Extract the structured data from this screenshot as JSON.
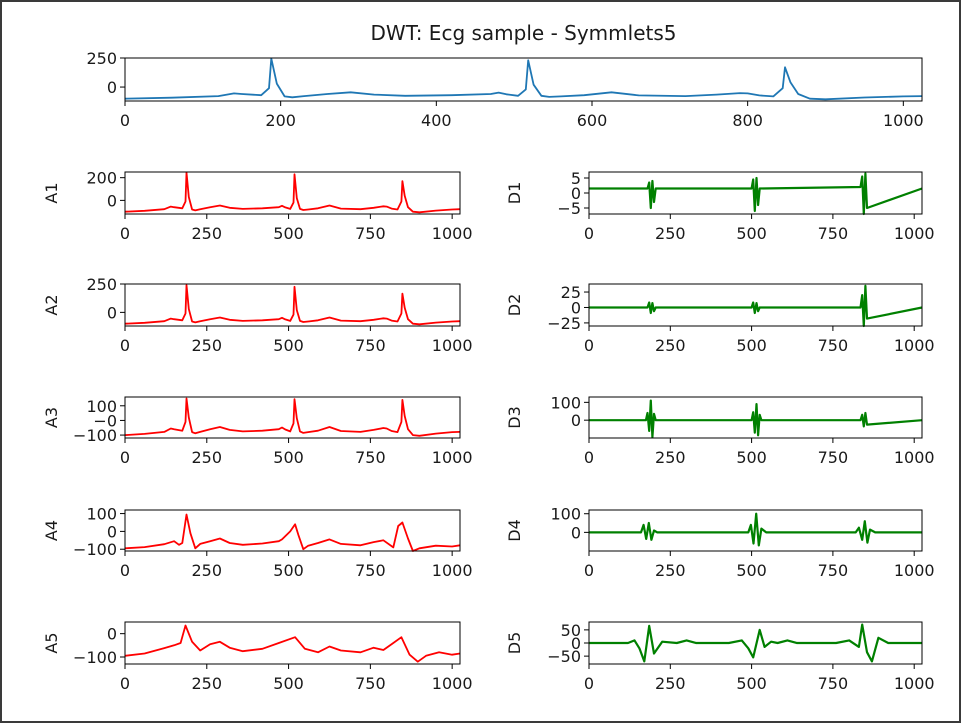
{
  "figure_title": "DWT: Ecg sample - Symmlets5",
  "colors": {
    "signal": "#1f77b4",
    "approx": "#ff0000",
    "detail": "#008000"
  },
  "chart_data": [
    {
      "id": "signal",
      "type": "line",
      "ylabel": "",
      "xlim": [
        0,
        1024
      ],
      "ylim": [
        -120,
        250
      ],
      "xticks": [
        "0",
        "200",
        "400",
        "600",
        "800",
        "1000"
      ],
      "yticks": [
        "250",
        "0"
      ],
      "series": [
        {
          "x": [
            0,
            60,
            120,
            140,
            150,
            175,
            185,
            188,
            195,
            205,
            215,
            230,
            260,
            290,
            320,
            360,
            420,
            470,
            480,
            490,
            505,
            515,
            518,
            525,
            535,
            545,
            560,
            590,
            625,
            660,
            720,
            760,
            790,
            800,
            815,
            833,
            845,
            848,
            855,
            865,
            880,
            900,
            950,
            1000,
            1024
          ],
          "y": [
            -100,
            -92,
            -78,
            -55,
            -60,
            -70,
            -10,
            245,
            30,
            -80,
            -88,
            -78,
            -60,
            -45,
            -65,
            -75,
            -70,
            -60,
            -48,
            -62,
            -75,
            -20,
            230,
            20,
            -75,
            -85,
            -80,
            -70,
            -45,
            -72,
            -78,
            -65,
            -52,
            -55,
            -72,
            -80,
            -10,
            170,
            40,
            -60,
            -100,
            -105,
            -90,
            -80,
            -78
          ]
        }
      ]
    },
    {
      "id": "A1",
      "type": "line",
      "ylabel": "A1",
      "xlim": [
        0,
        1024
      ],
      "ylim": [
        -120,
        250
      ],
      "xticks": [
        "0",
        "250",
        "500",
        "750",
        "1000"
      ],
      "yticks": [
        "200",
        "0"
      ],
      "series": [
        {
          "x": [
            0,
            60,
            120,
            140,
            150,
            175,
            185,
            188,
            195,
            205,
            215,
            230,
            260,
            290,
            320,
            360,
            420,
            470,
            480,
            490,
            505,
            515,
            518,
            525,
            535,
            545,
            560,
            590,
            625,
            660,
            720,
            760,
            790,
            800,
            815,
            833,
            845,
            848,
            855,
            865,
            880,
            900,
            950,
            1000,
            1024
          ],
          "y": [
            -100,
            -92,
            -78,
            -55,
            -60,
            -70,
            -10,
            245,
            30,
            -80,
            -88,
            -78,
            -60,
            -45,
            -65,
            -75,
            -70,
            -60,
            -48,
            -62,
            -75,
            -20,
            230,
            20,
            -75,
            -85,
            -80,
            -70,
            -45,
            -72,
            -78,
            -65,
            -52,
            -55,
            -72,
            -80,
            -10,
            170,
            40,
            -60,
            -100,
            -105,
            -90,
            -80,
            -78
          ]
        }
      ]
    },
    {
      "id": "D1",
      "type": "line",
      "ylabel": "D1",
      "xlim": [
        0,
        1024
      ],
      "ylim": [
        -7,
        7
      ],
      "xticks": [
        "0",
        "250",
        "500",
        "750",
        "1000"
      ],
      "yticks": [
        "5",
        "0",
        "−5"
      ],
      "series": [
        {
          "x": [
            0,
            180,
            185,
            190,
            195,
            200,
            205,
            500,
            505,
            510,
            515,
            520,
            525,
            835,
            840,
            845,
            850,
            855,
            1024
          ],
          "y": [
            1.5,
            1.5,
            3.5,
            -5,
            4,
            -3,
            1.5,
            1.5,
            4.5,
            -6,
            5,
            -4,
            1.5,
            2,
            5.5,
            -7,
            6.5,
            -5,
            1.5
          ]
        }
      ]
    },
    {
      "id": "A2",
      "type": "line",
      "ylabel": "A2",
      "xlim": [
        0,
        1024
      ],
      "ylim": [
        -120,
        250
      ],
      "xticks": [
        "0",
        "250",
        "500",
        "750",
        "1000"
      ],
      "yticks": [
        "250",
        "0"
      ],
      "series": [
        {
          "x": [
            0,
            60,
            120,
            140,
            150,
            175,
            185,
            188,
            195,
            205,
            215,
            230,
            260,
            290,
            320,
            360,
            420,
            470,
            480,
            490,
            505,
            515,
            518,
            525,
            535,
            545,
            560,
            590,
            625,
            660,
            720,
            760,
            790,
            800,
            815,
            833,
            845,
            848,
            855,
            865,
            880,
            900,
            950,
            1000,
            1024
          ],
          "y": [
            -100,
            -92,
            -78,
            -55,
            -60,
            -70,
            -10,
            240,
            30,
            -80,
            -88,
            -78,
            -60,
            -45,
            -65,
            -75,
            -70,
            -60,
            -48,
            -62,
            -75,
            -20,
            225,
            20,
            -75,
            -85,
            -80,
            -70,
            -45,
            -72,
            -78,
            -65,
            -52,
            -55,
            -72,
            -80,
            -10,
            165,
            40,
            -60,
            -100,
            -105,
            -90,
            -80,
            -78
          ]
        }
      ]
    },
    {
      "id": "D2",
      "type": "line",
      "ylabel": "D2",
      "xlim": [
        0,
        1024
      ],
      "ylim": [
        -30,
        38
      ],
      "xticks": [
        "0",
        "250",
        "500",
        "750",
        "1000"
      ],
      "yticks": [
        "25",
        "0",
        "−25"
      ],
      "series": [
        {
          "x": [
            0,
            180,
            185,
            190,
            195,
            200,
            205,
            500,
            505,
            510,
            515,
            520,
            525,
            835,
            840,
            845,
            850,
            855,
            1024
          ],
          "y": [
            0,
            0,
            8,
            -9,
            7,
            -6,
            0,
            0,
            8,
            -9,
            7,
            -6,
            0,
            0,
            20,
            -30,
            35,
            -18,
            0
          ]
        }
      ]
    },
    {
      "id": "A3",
      "type": "line",
      "ylabel": "A3",
      "xlim": [
        0,
        1024
      ],
      "ylim": [
        -120,
        160
      ],
      "xticks": [
        "0",
        "250",
        "500",
        "750",
        "1000"
      ],
      "yticks": [
        "100",
        "−0",
        "−100"
      ],
      "series": [
        {
          "x": [
            0,
            60,
            120,
            140,
            150,
            175,
            185,
            188,
            195,
            205,
            215,
            230,
            260,
            290,
            320,
            360,
            420,
            470,
            480,
            490,
            505,
            515,
            518,
            525,
            535,
            545,
            560,
            590,
            625,
            660,
            720,
            760,
            790,
            800,
            815,
            833,
            845,
            848,
            855,
            865,
            880,
            900,
            950,
            1000,
            1024
          ],
          "y": [
            -100,
            -92,
            -78,
            -55,
            -60,
            -70,
            -10,
            150,
            20,
            -80,
            -88,
            -78,
            -60,
            -45,
            -65,
            -75,
            -70,
            -60,
            -48,
            -62,
            -75,
            -20,
            145,
            15,
            -75,
            -85,
            -80,
            -70,
            -45,
            -72,
            -78,
            -65,
            -52,
            -55,
            -72,
            -80,
            -10,
            140,
            30,
            -60,
            -100,
            -105,
            -90,
            -80,
            -78
          ]
        }
      ]
    },
    {
      "id": "D3",
      "type": "line",
      "ylabel": "D3",
      "xlim": [
        0,
        1024
      ],
      "ylim": [
        -100,
        130
      ],
      "xticks": [
        "0",
        "250",
        "500",
        "750",
        "1000"
      ],
      "yticks": [
        "100",
        "0"
      ],
      "series": [
        {
          "x": [
            0,
            175,
            180,
            185,
            190,
            195,
            200,
            205,
            500,
            505,
            510,
            515,
            520,
            525,
            530,
            835,
            840,
            845,
            850,
            855,
            1024
          ],
          "y": [
            0,
            0,
            40,
            -60,
            110,
            -95,
            35,
            0,
            0,
            45,
            -70,
            90,
            -85,
            30,
            0,
            0,
            30,
            -35,
            40,
            -25,
            0
          ]
        }
      ]
    },
    {
      "id": "A4",
      "type": "line",
      "ylabel": "A4",
      "xlim": [
        0,
        1024
      ],
      "ylim": [
        -110,
        120
      ],
      "xticks": [
        "0",
        "250",
        "500",
        "750",
        "1000"
      ],
      "yticks": [
        "100",
        "0",
        "−100"
      ],
      "series": [
        {
          "x": [
            0,
            60,
            120,
            150,
            165,
            175,
            188,
            200,
            215,
            230,
            260,
            290,
            320,
            360,
            420,
            470,
            480,
            505,
            520,
            530,
            545,
            560,
            590,
            625,
            660,
            720,
            760,
            790,
            820,
            835,
            848,
            865,
            880,
            900,
            950,
            1000,
            1024
          ],
          "y": [
            -95,
            -88,
            -72,
            -55,
            -75,
            -65,
            95,
            -10,
            -95,
            -70,
            -55,
            -40,
            -65,
            -75,
            -68,
            -55,
            -45,
            0,
            40,
            -20,
            -100,
            -80,
            -65,
            -45,
            -70,
            -78,
            -60,
            -50,
            -90,
            30,
            50,
            -40,
            -110,
            -95,
            -80,
            -85,
            -78
          ]
        }
      ]
    },
    {
      "id": "D4",
      "type": "line",
      "ylabel": "D4",
      "xlim": [
        0,
        1024
      ],
      "ylim": [
        -100,
        120
      ],
      "xticks": [
        "0",
        "250",
        "500",
        "750",
        "1000"
      ],
      "yticks": [
        "100",
        "0"
      ],
      "series": [
        {
          "x": [
            0,
            160,
            168,
            176,
            184,
            192,
            200,
            210,
            490,
            498,
            506,
            514,
            522,
            530,
            545,
            820,
            830,
            840,
            848,
            856,
            864,
            880,
            1024
          ],
          "y": [
            0,
            0,
            40,
            -35,
            50,
            -40,
            10,
            0,
            0,
            40,
            -60,
            100,
            -70,
            20,
            0,
            0,
            25,
            -40,
            60,
            -55,
            15,
            0,
            0
          ]
        }
      ]
    },
    {
      "id": "A5",
      "type": "line",
      "ylabel": "A5",
      "xlim": [
        0,
        1024
      ],
      "ylim": [
        -130,
        50
      ],
      "xticks": [
        "0",
        "250",
        "500",
        "750",
        "1000"
      ],
      "yticks": [
        "0",
        "−100"
      ],
      "series": [
        {
          "x": [
            0,
            60,
            120,
            150,
            170,
            185,
            205,
            230,
            260,
            290,
            320,
            360,
            420,
            470,
            520,
            550,
            590,
            625,
            660,
            720,
            760,
            790,
            820,
            845,
            870,
            895,
            920,
            960,
            1000,
            1024
          ],
          "y": [
            -95,
            -85,
            -62,
            -50,
            -40,
            35,
            -35,
            -72,
            -45,
            -35,
            -60,
            -75,
            -65,
            -40,
            -15,
            -65,
            -80,
            -55,
            -72,
            -80,
            -60,
            -70,
            -40,
            -15,
            -90,
            -120,
            -95,
            -80,
            -90,
            -85
          ]
        }
      ]
    },
    {
      "id": "D5",
      "type": "line",
      "ylabel": "D5",
      "xlim": [
        0,
        1024
      ],
      "ylim": [
        -80,
        80
      ],
      "xticks": [
        "0",
        "250",
        "500",
        "750",
        "1000"
      ],
      "yticks": [
        "50",
        "−50",
        "0"
      ],
      "series": [
        {
          "x": [
            0,
            120,
            140,
            155,
            170,
            185,
            200,
            225,
            270,
            300,
            330,
            430,
            470,
            490,
            505,
            525,
            540,
            560,
            580,
            610,
            640,
            680,
            760,
            800,
            830,
            840,
            855,
            870,
            890,
            920,
            1024
          ],
          "y": [
            0,
            0,
            10,
            -20,
            -70,
            65,
            -40,
            5,
            0,
            10,
            0,
            0,
            10,
            -20,
            -55,
            50,
            -15,
            5,
            0,
            10,
            0,
            0,
            0,
            10,
            -15,
            70,
            -35,
            -70,
            20,
            0,
            0
          ]
        }
      ]
    }
  ]
}
